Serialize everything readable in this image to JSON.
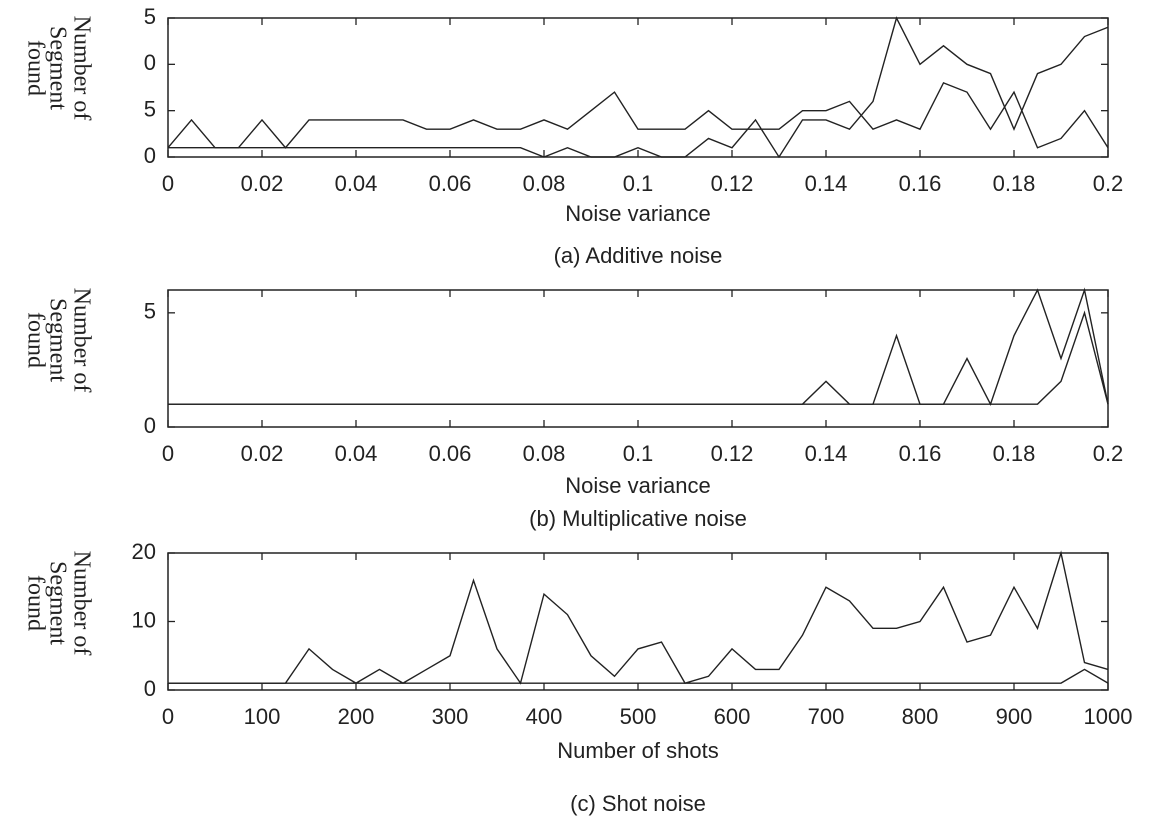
{
  "chart_data": [
    {
      "type": "line",
      "caption": "(a)  Additive noise",
      "xlabel": "Noise variance",
      "ylabel": [
        "Number of",
        "Segment",
        "found"
      ],
      "x": [
        0,
        0.005,
        0.01,
        0.015,
        0.02,
        0.025,
        0.03,
        0.035,
        0.04,
        0.045,
        0.05,
        0.055,
        0.06,
        0.065,
        0.07,
        0.075,
        0.08,
        0.085,
        0.09,
        0.095,
        0.1,
        0.105,
        0.11,
        0.115,
        0.12,
        0.125,
        0.13,
        0.135,
        0.14,
        0.145,
        0.15,
        0.155,
        0.16,
        0.165,
        0.17,
        0.175,
        0.18,
        0.185,
        0.19,
        0.195,
        0.2
      ],
      "series": [
        {
          "color": "#222222",
          "values": [
            1,
            4,
            1,
            1,
            4,
            1,
            4,
            4,
            4,
            4,
            4,
            3,
            3,
            4,
            3,
            3,
            4,
            3,
            5,
            7,
            3,
            3,
            3,
            5,
            3,
            3,
            3,
            5,
            5,
            6,
            3,
            4,
            3,
            8,
            7,
            3,
            7,
            1,
            2,
            5,
            1
          ]
        },
        {
          "color": "#222222",
          "values": [
            1,
            1,
            1,
            1,
            1,
            1,
            1,
            1,
            1,
            1,
            1,
            1,
            1,
            1,
            1,
            1,
            0,
            1,
            0,
            0,
            1,
            0,
            0,
            2,
            1,
            4,
            0,
            4,
            4,
            3,
            6,
            15,
            10,
            12,
            10,
            9,
            3,
            9,
            10,
            13,
            14
          ]
        }
      ],
      "xlim": [
        0,
        0.2
      ],
      "xticks": [
        0,
        0.02,
        0.04,
        0.06,
        0.08,
        0.1,
        0.12,
        0.14,
        0.16,
        0.18,
        0.2
      ],
      "ylim": [
        0,
        15
      ],
      "yticks": [
        {
          "value": 15,
          "label": "5"
        },
        {
          "value": 10,
          "label": "0"
        },
        5,
        0
      ]
    },
    {
      "type": "line",
      "caption": "(b) Multiplicative noise",
      "xlabel": "Noise variance",
      "ylabel": [
        "Number of",
        "Segment",
        "found"
      ],
      "x": [
        0,
        0.005,
        0.01,
        0.015,
        0.02,
        0.025,
        0.03,
        0.035,
        0.04,
        0.045,
        0.05,
        0.055,
        0.06,
        0.065,
        0.07,
        0.075,
        0.08,
        0.085,
        0.09,
        0.095,
        0.1,
        0.105,
        0.11,
        0.115,
        0.12,
        0.125,
        0.13,
        0.135,
        0.14,
        0.145,
        0.15,
        0.155,
        0.16,
        0.165,
        0.17,
        0.175,
        0.18,
        0.185,
        0.19,
        0.195,
        0.2
      ],
      "series": [
        {
          "color": "#222222",
          "values": [
            1,
            1,
            1,
            1,
            1,
            1,
            1,
            1,
            1,
            1,
            1,
            1,
            1,
            1,
            1,
            1,
            1,
            1,
            1,
            1,
            1,
            1,
            1,
            1,
            1,
            1,
            1,
            1,
            2,
            1,
            1,
            4,
            1,
            1,
            3,
            1,
            4,
            6,
            3,
            6,
            1
          ]
        },
        {
          "color": "#222222",
          "values": [
            1,
            1,
            1,
            1,
            1,
            1,
            1,
            1,
            1,
            1,
            1,
            1,
            1,
            1,
            1,
            1,
            1,
            1,
            1,
            1,
            1,
            1,
            1,
            1,
            1,
            1,
            1,
            1,
            1,
            1,
            1,
            1,
            1,
            1,
            1,
            1,
            1,
            1,
            2,
            5,
            1
          ]
        }
      ],
      "xlim": [
        0,
        0.2
      ],
      "xticks": [
        0,
        0.02,
        0.04,
        0.06,
        0.08,
        0.1,
        0.12,
        0.14,
        0.16,
        0.18,
        0.2
      ],
      "ylim": [
        0,
        6
      ],
      "yticks": [
        5,
        0
      ]
    },
    {
      "type": "line",
      "caption": "(c) Shot noise",
      "xlabel": "Number of shots",
      "ylabel": [
        "Number of",
        "Segment",
        "found"
      ],
      "x": [
        0,
        25,
        50,
        75,
        100,
        125,
        150,
        175,
        200,
        225,
        250,
        275,
        300,
        325,
        350,
        375,
        400,
        425,
        450,
        475,
        500,
        525,
        550,
        575,
        600,
        625,
        650,
        675,
        700,
        725,
        750,
        775,
        800,
        825,
        850,
        875,
        900,
        925,
        950,
        975,
        1000
      ],
      "series": [
        {
          "color": "#222222",
          "values": [
            1,
            1,
            1,
            1,
            1,
            1,
            6,
            3,
            1,
            3,
            1,
            3,
            5,
            16,
            6,
            1,
            14,
            11,
            5,
            2,
            6,
            7,
            1,
            2,
            6,
            3,
            3,
            8,
            15,
            13,
            9,
            9,
            10,
            15,
            7,
            8,
            15,
            9,
            20,
            4,
            3
          ]
        },
        {
          "color": "#222222",
          "values": [
            1,
            1,
            1,
            1,
            1,
            1,
            1,
            1,
            1,
            1,
            1,
            1,
            1,
            1,
            1,
            1,
            1,
            1,
            1,
            1,
            1,
            1,
            1,
            1,
            1,
            1,
            1,
            1,
            1,
            1,
            1,
            1,
            1,
            1,
            1,
            1,
            1,
            1,
            1,
            3,
            1
          ]
        }
      ],
      "xlim": [
        0,
        1000
      ],
      "xticks": [
        0,
        100,
        200,
        300,
        400,
        500,
        600,
        700,
        800,
        900,
        1000
      ],
      "ylim": [
        0,
        20
      ],
      "yticks": [
        20,
        10,
        0
      ]
    }
  ]
}
